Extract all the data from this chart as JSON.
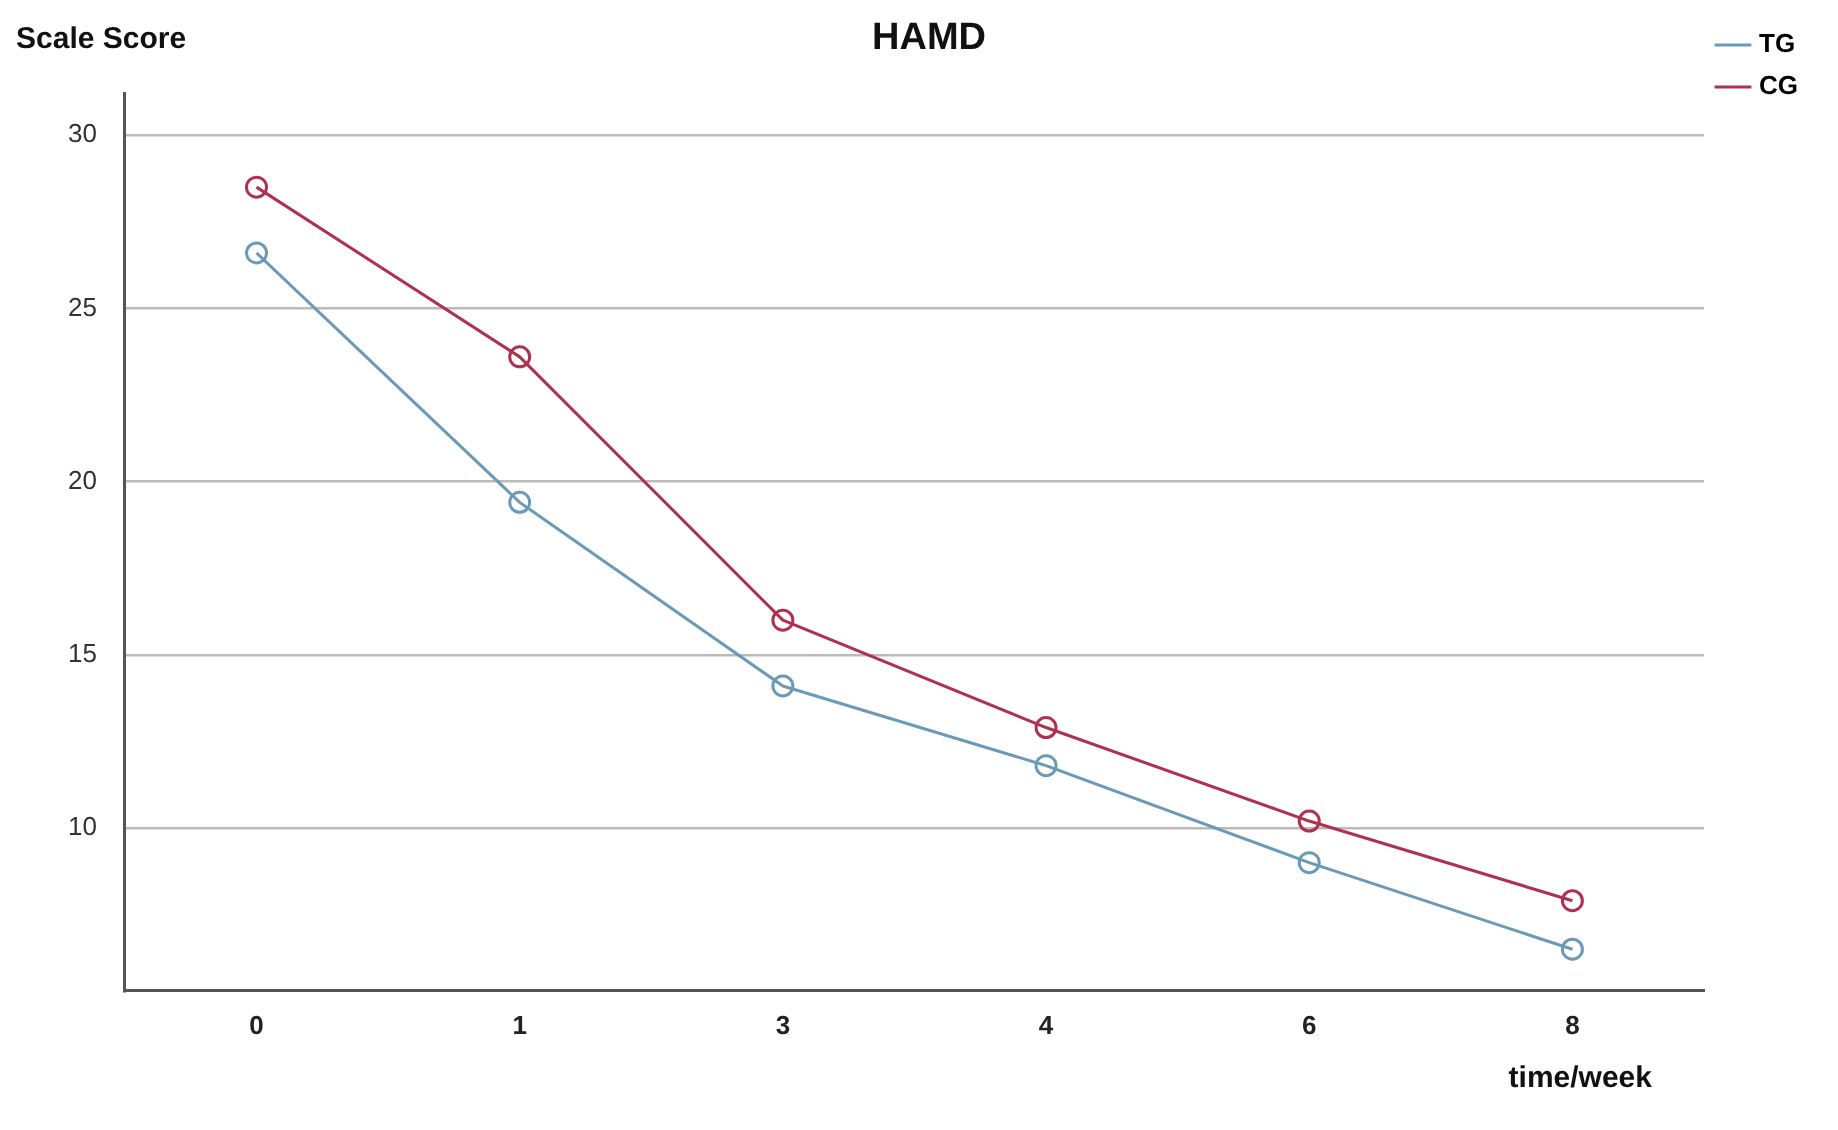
{
  "chart_data": {
    "type": "line",
    "title": "HAMD",
    "xlabel": "time/week",
    "ylabel": "Scale Score",
    "categories": [
      "0",
      "1",
      "3",
      "4",
      "6",
      "8"
    ],
    "series": [
      {
        "name": "TG",
        "color": "#6a9ab8",
        "values": [
          26.6,
          19.4,
          14.1,
          11.8,
          9.0,
          6.5
        ]
      },
      {
        "name": "CG",
        "color": "#b03050",
        "values": [
          28.5,
          23.6,
          16.0,
          12.9,
          10.2,
          7.9
        ]
      }
    ],
    "ylim": [
      5.3,
      31.2
    ],
    "yticks": [
      10,
      15,
      20,
      25,
      30
    ],
    "grid": "y",
    "legend": "top right",
    "marker": "circle",
    "line_style": "solid"
  }
}
